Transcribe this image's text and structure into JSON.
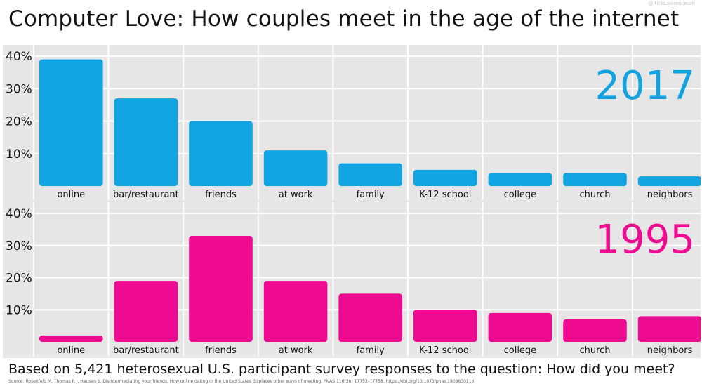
{
  "watermark": "@RickLawrenceum",
  "title": "Computer Love: How couples meet in the age of the internet",
  "footer": "Based on 5,421 heterosexual U.S. participant survey responses to the question: How did you meet?",
  "source": "Source: Rosenfeld M, Thomas R J, Hausen S. Disintermediating your friends: How online dating in the United States displaces other ways of meeting. PNAS 116(36) 17753–17758. https://doi.org/10.1073/pnas.1908630116",
  "chart_data": [
    {
      "type": "bar",
      "title": "2017",
      "color": "#12a3e3",
      "categories": [
        "online",
        "bar/restaurant",
        "friends",
        "at work",
        "family",
        "K-12 school",
        "college",
        "church",
        "neighbors"
      ],
      "values": [
        39,
        27,
        20,
        11,
        7,
        5,
        4,
        4,
        3
      ],
      "ylim": [
        0,
        40
      ],
      "yticks": [
        "10%",
        "20%",
        "30%",
        "40%"
      ],
      "grid": true
    },
    {
      "type": "bar",
      "title": "1995",
      "color": "#ee0b91",
      "categories": [
        "online",
        "bar/restaurant",
        "friends",
        "at work",
        "family",
        "K-12 school",
        "college",
        "church",
        "neighbors"
      ],
      "values": [
        2,
        19,
        33,
        19,
        15,
        10,
        9,
        7,
        8
      ],
      "ylim": [
        0,
        40
      ],
      "yticks": [
        "10%",
        "20%",
        "30%",
        "40%"
      ],
      "grid": true
    }
  ]
}
